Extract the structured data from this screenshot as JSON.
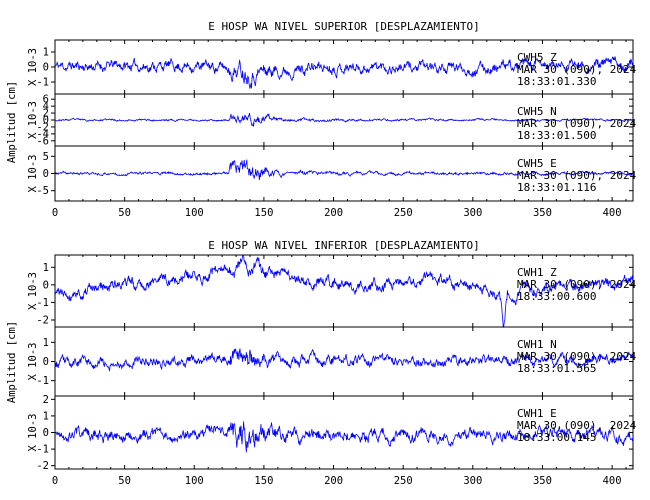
{
  "chart_data": [
    {
      "type": "line",
      "title": "E HOSP WA NIVEL SUPERIOR [DESPLAZAMIENTO]",
      "ylabel": "Amplitud [cm]",
      "xlim": [
        0,
        415
      ],
      "x_ticks": [
        0,
        50,
        100,
        150,
        200,
        250,
        300,
        350,
        400
      ],
      "line_color": "#0000ff",
      "series": [
        {
          "name": "CWH5 Z",
          "date": "MAR 30 (090), 2024",
          "time": "18:33:01.330",
          "scale_label": "X 10-3",
          "ylim": [
            -1.8,
            1.8
          ],
          "y_ticks": [
            -1,
            0,
            1
          ],
          "noise": 0.45,
          "event": 0.85,
          "profile": [
            [
              0,
              0.05
            ],
            [
              100,
              0.1
            ],
            [
              150,
              -0.25
            ],
            [
              200,
              0.05
            ],
            [
              300,
              -0.1
            ],
            [
              415,
              0.25
            ]
          ],
          "pos_only": false,
          "spike": null,
          "seed": 11
        },
        {
          "name": "CWH5 N",
          "date": "MAR 30 (090), 2024",
          "time": "18:33:01.500",
          "scale_label": "X 10-3",
          "ylim": [
            -7.5,
            7.5
          ],
          "y_ticks": [
            -6,
            -4,
            -2,
            0,
            2,
            4,
            6
          ],
          "noise": 0.35,
          "event": 5.8,
          "profile": [
            [
              0,
              0
            ],
            [
              415,
              0
            ]
          ],
          "pos_only": false,
          "spike": null,
          "seed": 23
        },
        {
          "name": "CWH5 E",
          "date": "MAR 30 (090), 2024",
          "time": "18:33:01.116",
          "scale_label": "X 10-3",
          "ylim": [
            -8,
            8
          ],
          "y_ticks": [
            -5,
            0,
            5
          ],
          "noise": 0.5,
          "event": 6.2,
          "profile": [
            [
              0,
              0
            ],
            [
              415,
              0
            ]
          ],
          "pos_only": false,
          "spike": null,
          "seed": 37
        }
      ]
    },
    {
      "type": "line",
      "title": "E HOSP WA NIVEL INFERIOR [DESPLAZAMIENTO]",
      "ylabel": "Amplitud [cm]",
      "xlim": [
        0,
        415
      ],
      "x_ticks": [
        0,
        50,
        100,
        150,
        200,
        250,
        300,
        350,
        400
      ],
      "line_color": "#0000ff",
      "series": [
        {
          "name": "CWH1 Z",
          "date": "MAR 30 (090), 2024",
          "time": "18:33:00.600",
          "scale_label": "X 10-3",
          "ylim": [
            -2.4,
            1.7
          ],
          "y_ticks": [
            -2,
            -1,
            0,
            1
          ],
          "noise": 0.42,
          "event": 0.3,
          "profile": [
            [
              0,
              -0.6
            ],
            [
              45,
              0.0
            ],
            [
              90,
              0.3
            ],
            [
              110,
              0.7
            ],
            [
              135,
              1.0
            ],
            [
              160,
              0.55
            ],
            [
              190,
              0.1
            ],
            [
              230,
              -0.1
            ],
            [
              270,
              0.3
            ],
            [
              320,
              -0.45
            ],
            [
              350,
              -0.3
            ],
            [
              390,
              0.0
            ],
            [
              415,
              0.35
            ]
          ],
          "pos_only": false,
          "spike": [
            322,
            -1.9
          ],
          "seed": 41
        },
        {
          "name": "CWH1 N",
          "date": "MAR 30 (090), 2024",
          "time": "18:33:01.565",
          "scale_label": "X 10-3",
          "ylim": [
            -1.8,
            1.8
          ],
          "y_ticks": [
            -1,
            0,
            1
          ],
          "noise": 0.32,
          "event": 1.3,
          "profile": [
            [
              0,
              -0.1
            ],
            [
              110,
              0.1
            ],
            [
              210,
              0.1
            ],
            [
              290,
              0.0
            ],
            [
              415,
              0.1
            ]
          ],
          "pos_only": false,
          "spike": null,
          "seed": 53
        },
        {
          "name": "CWH1 E",
          "date": "MAR 30 (090), 2024",
          "time": "18:33:00.145",
          "scale_label": "X 10-3",
          "ylim": [
            -2.2,
            2.2
          ],
          "y_ticks": [
            -2,
            -1,
            0,
            1,
            2
          ],
          "noise": 0.45,
          "event": 1.4,
          "profile": [
            [
              0,
              -0.15
            ],
            [
              415,
              -0.15
            ]
          ],
          "pos_only": false,
          "spike": null,
          "seed": 67
        }
      ]
    }
  ]
}
